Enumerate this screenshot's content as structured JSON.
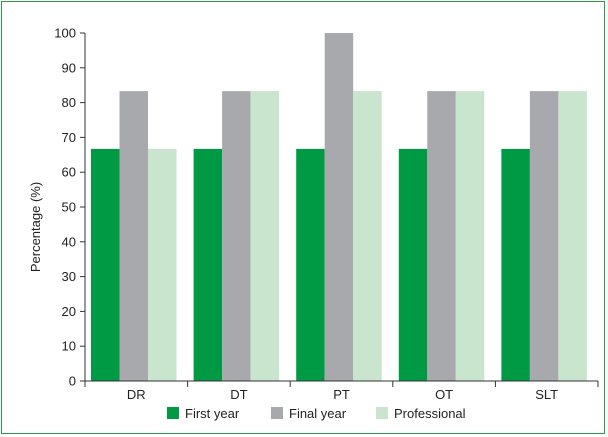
{
  "chart_data": {
    "type": "bar",
    "categories": [
      "DR",
      "DT",
      "PT",
      "OT",
      "SLT"
    ],
    "series": [
      {
        "name": "First year",
        "values": [
          66.7,
          66.7,
          66.7,
          66.7,
          66.7
        ],
        "color": "#009a44"
      },
      {
        "name": "Final year",
        "values": [
          83.3,
          83.3,
          100,
          83.3,
          83.3
        ],
        "color": "#a7a9ac"
      },
      {
        "name": "Professional",
        "values": [
          66.7,
          83.3,
          83.3,
          83.3,
          83.3
        ],
        "color": "#c9e5cd"
      }
    ],
    "title": "",
    "xlabel": "",
    "ylabel": "Percentage (%)",
    "ylim": [
      0,
      100
    ],
    "yticks": [
      "0",
      "10",
      "20",
      "30",
      "40",
      "50",
      "60",
      "70",
      "80",
      "90",
      "100"
    ],
    "grid": false,
    "legend_position": "bottom"
  }
}
